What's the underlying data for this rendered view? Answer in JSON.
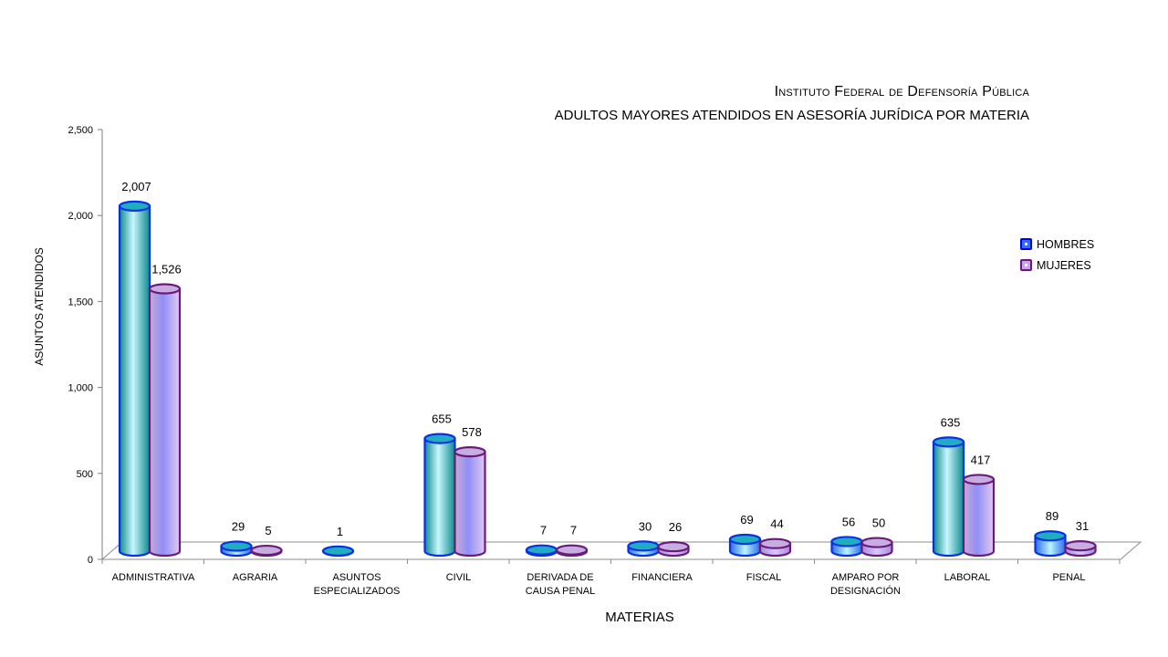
{
  "chart_data": {
    "type": "bar",
    "title": "Instituto Federal de Defensoría Pública",
    "subtitle": "ADULTOS MAYORES ATENDIDOS EN ASESORÍA JURÍDICA POR MATERIA",
    "xlabel": "MATERIAS",
    "ylabel": "ASUNTOS ATENDIDOS",
    "ylim": [
      0,
      2500
    ],
    "yticks": [
      "0",
      "500",
      "1,000",
      "1,500",
      "2,000",
      "2,500"
    ],
    "ytick_values": [
      0,
      500,
      1000,
      1500,
      2000,
      2500
    ],
    "legend_position": "right",
    "categories": [
      [
        "ADMINISTRATIVA"
      ],
      [
        "AGRARIA"
      ],
      [
        "ASUNTOS",
        "ESPECIALIZADOS"
      ],
      [
        "CIVIL"
      ],
      [
        "DERIVADA DE",
        "CAUSA PENAL"
      ],
      [
        "FINANCIERA"
      ],
      [
        "FISCAL"
      ],
      [
        "AMPARO POR",
        "DESIGNACIÓN"
      ],
      [
        "LABORAL"
      ],
      [
        "PENAL"
      ]
    ],
    "series": [
      {
        "name": "HOMBRES",
        "values": [
          2007,
          29,
          1,
          655,
          7,
          30,
          69,
          56,
          635,
          89
        ],
        "labels": [
          "2,007",
          "29",
          "1",
          "655",
          "7",
          "30",
          "69",
          "56",
          "635",
          "89"
        ],
        "color": "#1a3df0"
      },
      {
        "name": "MUJERES",
        "values": [
          1526,
          5,
          null,
          578,
          7,
          26,
          44,
          50,
          417,
          31
        ],
        "labels": [
          "1,526",
          "5",
          "",
          "578",
          "7",
          "26",
          "44",
          "50",
          "417",
          "31"
        ],
        "color": "#7a2a88"
      }
    ]
  }
}
